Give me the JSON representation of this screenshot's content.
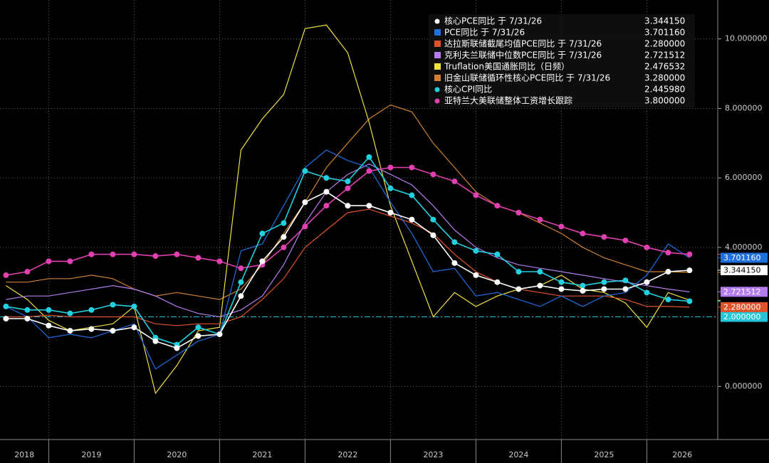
{
  "chart_data": {
    "type": "line",
    "x": [
      2018.5,
      2018.75,
      2019.0,
      2019.25,
      2019.5,
      2019.75,
      2020.0,
      2020.25,
      2020.5,
      2020.75,
      2021.0,
      2021.25,
      2021.5,
      2021.75,
      2022.0,
      2022.25,
      2022.5,
      2022.75,
      2023.0,
      2023.25,
      2023.5,
      2023.75,
      2024.0,
      2024.25,
      2024.5,
      2024.75,
      2025.0,
      2025.25,
      2025.5,
      2025.75,
      2026.0,
      2026.25,
      2026.5
    ],
    "xlim": [
      2018.43,
      2026.83
    ],
    "xticks": [
      2018,
      2019,
      2020,
      2021,
      2022,
      2023,
      2024,
      2025,
      2026
    ],
    "ylim": [
      -1.53,
      11.12
    ],
    "yticks": [
      {
        "value": 0,
        "label": "0.000000"
      },
      {
        "value": 4,
        "label": "4.000000"
      },
      {
        "value": 6,
        "label": "6.000000"
      },
      {
        "value": 8,
        "label": "8.000000"
      },
      {
        "value": 10,
        "label": "10.000000"
      }
    ],
    "grid": true,
    "hline": {
      "value": 2,
      "label": "2.000000",
      "color": "#26c6da"
    },
    "series": [
      {
        "name": "核心PCE同比 于 7/31/26",
        "color": "#ffffff",
        "marker": true,
        "tag": true,
        "last_value": 3.34415,
        "last_label": "3.344150",
        "values": [
          1.95,
          1.95,
          1.75,
          1.6,
          1.65,
          1.6,
          1.7,
          1.3,
          1.1,
          1.45,
          1.5,
          2.6,
          3.6,
          4.3,
          5.3,
          5.6,
          5.2,
          5.2,
          5.0,
          4.8,
          4.35,
          3.55,
          3.2,
          3.0,
          2.8,
          2.9,
          2.8,
          2.75,
          2.8,
          2.8,
          3.0,
          3.3,
          3.34
        ]
      },
      {
        "name": "PCE同比 于 7/31/26",
        "color": "#1e6fe0",
        "marker": false,
        "tag": true,
        "last_value": 3.70116,
        "last_label": "3.701160",
        "values": [
          2.3,
          2.0,
          1.4,
          1.5,
          1.4,
          1.6,
          1.8,
          0.5,
          0.9,
          1.3,
          1.5,
          3.9,
          4.1,
          5.2,
          6.3,
          6.8,
          6.5,
          6.3,
          5.3,
          4.4,
          3.3,
          3.4,
          2.6,
          2.7,
          2.5,
          2.3,
          2.6,
          2.3,
          2.6,
          2.7,
          3.2,
          4.1,
          3.7
        ]
      },
      {
        "name": "达拉斯联储截尾均值PCE同比 于 7/31/26",
        "color": "#e0522a",
        "marker": false,
        "tag": true,
        "last_value": 2.28,
        "last_label": "2.280000",
        "values": [
          2.0,
          2.0,
          2.05,
          2.0,
          2.0,
          2.0,
          2.0,
          1.8,
          1.75,
          1.8,
          1.8,
          2.0,
          2.5,
          3.1,
          4.0,
          4.5,
          5.0,
          5.1,
          4.9,
          4.7,
          4.4,
          3.8,
          3.3,
          3.0,
          2.8,
          2.7,
          2.6,
          2.6,
          2.6,
          2.5,
          2.3,
          2.3,
          2.28
        ]
      },
      {
        "name": "克利夫兰联储中位数PCE同比 于 7/31/26",
        "color": "#b57cf0",
        "marker": false,
        "tag": true,
        "last_value": 2.721512,
        "last_label": "2.721512",
        "values": [
          2.5,
          2.6,
          2.6,
          2.7,
          2.8,
          2.9,
          2.8,
          2.6,
          2.3,
          2.1,
          2.0,
          2.2,
          2.6,
          3.5,
          4.7,
          5.6,
          6.1,
          6.4,
          6.1,
          5.8,
          5.2,
          4.5,
          4.0,
          3.7,
          3.5,
          3.4,
          3.3,
          3.2,
          3.1,
          3.0,
          2.9,
          2.8,
          2.72
        ]
      },
      {
        "name": "Truflation美国通胀同比（日频）",
        "color": "#f0e040",
        "marker": false,
        "tag": false,
        "last_value": 2.476532,
        "last_label": "2.476532",
        "values": [
          2.9,
          2.5,
          1.9,
          1.6,
          1.7,
          1.8,
          2.3,
          -0.2,
          0.6,
          1.6,
          1.7,
          6.8,
          7.7,
          8.4,
          10.3,
          10.4,
          9.6,
          7.6,
          5.2,
          3.6,
          2.0,
          2.7,
          2.3,
          2.6,
          2.8,
          2.9,
          3.2,
          2.8,
          2.7,
          2.4,
          1.7,
          2.7,
          2.48
        ]
      },
      {
        "name": "旧金山联储循环性核心PCE同比 于 7/31/26",
        "color": "#d08030",
        "marker": false,
        "tag": false,
        "last_value": 3.28,
        "last_label": "3.280000",
        "values": [
          3.0,
          3.0,
          3.1,
          3.1,
          3.2,
          3.1,
          2.8,
          2.6,
          2.7,
          2.6,
          2.5,
          2.8,
          3.5,
          4.4,
          5.3,
          6.3,
          7.0,
          7.7,
          8.1,
          7.9,
          7.0,
          6.3,
          5.6,
          5.2,
          5.0,
          4.7,
          4.4,
          4.0,
          3.7,
          3.5,
          3.3,
          3.3,
          3.28
        ]
      },
      {
        "name": "核心CPI同比",
        "color": "#22d0e0",
        "marker": true,
        "tag": false,
        "last_value": 2.44598,
        "last_label": "2.445980",
        "values": [
          2.3,
          2.2,
          2.2,
          2.1,
          2.2,
          2.35,
          2.3,
          1.4,
          1.2,
          1.7,
          1.5,
          3.0,
          4.4,
          4.7,
          6.2,
          6.0,
          5.9,
          6.6,
          5.7,
          5.5,
          4.8,
          4.15,
          3.9,
          3.8,
          3.3,
          3.3,
          3.0,
          2.9,
          3.0,
          3.05,
          2.7,
          2.5,
          2.45
        ]
      },
      {
        "name": "亚特兰大美联储整体工资增长跟踪",
        "color": "#e040b0",
        "marker": true,
        "tag": false,
        "last_value": 3.8,
        "last_label": "3.800000",
        "values": [
          3.2,
          3.3,
          3.6,
          3.6,
          3.8,
          3.8,
          3.8,
          3.75,
          3.8,
          3.7,
          3.6,
          3.4,
          3.5,
          4.0,
          4.6,
          5.2,
          5.7,
          6.2,
          6.3,
          6.3,
          6.1,
          5.9,
          5.5,
          5.2,
          5.0,
          4.8,
          4.6,
          4.4,
          4.3,
          4.2,
          4.0,
          3.85,
          3.8
        ]
      }
    ]
  }
}
